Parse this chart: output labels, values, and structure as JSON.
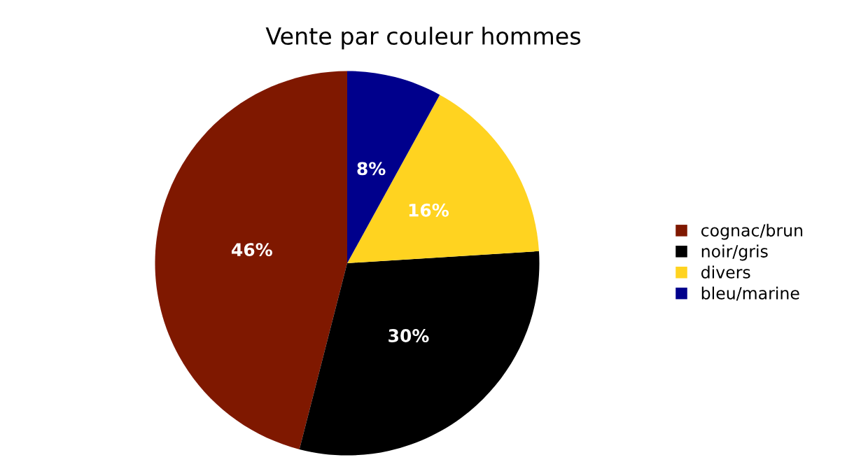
{
  "chart_data": {
    "type": "pie",
    "title": "Vente par couleur hommes",
    "categories": [
      "cognac/brun",
      "noir/gris",
      "divers",
      "bleu/marine"
    ],
    "values": [
      46,
      30,
      16,
      8
    ],
    "colors": [
      "#7f1800",
      "#000000",
      "#ffd320",
      "#00008c"
    ],
    "value_labels": [
      "46%",
      "30%",
      "16%",
      "8%"
    ],
    "legend": "right"
  }
}
